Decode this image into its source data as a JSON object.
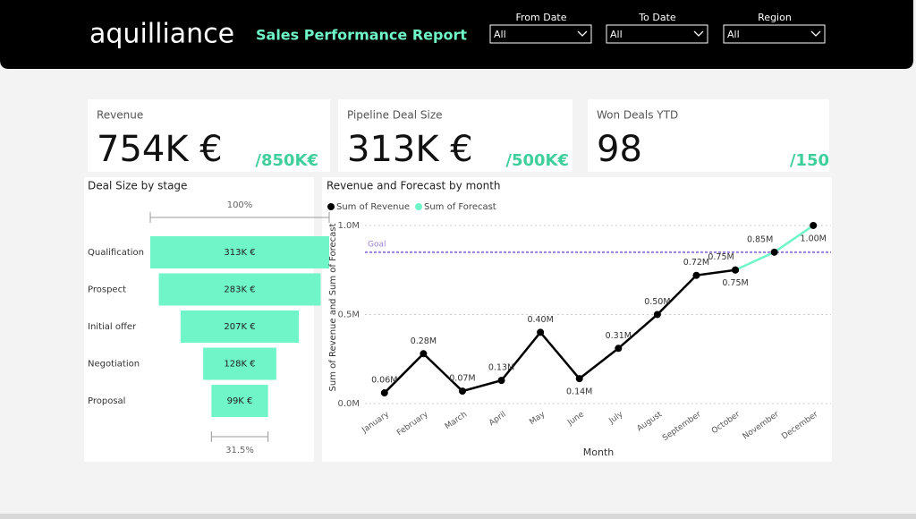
{
  "header": {
    "logo": "aquilliance",
    "title": "Sales Performance Report",
    "filters": [
      {
        "label": "From Date",
        "value": "All"
      },
      {
        "label": "To Date",
        "value": "All"
      },
      {
        "label": "Region",
        "value": "All"
      }
    ]
  },
  "kpis": [
    {
      "label": "Revenue",
      "value": "754K €",
      "target": "/850K€"
    },
    {
      "label": "Pipeline Deal Size",
      "value": "313K €",
      "target": "/500K€"
    },
    {
      "label": "Won Deals YTD",
      "value": "98",
      "target": "/150"
    }
  ],
  "chart_data": [
    {
      "type": "funnel",
      "title": "Deal Size by stage",
      "categories": [
        "Qualification",
        "Prospect",
        "Initial offer",
        "Negotiation",
        "Proposal"
      ],
      "values": [
        313000,
        283000,
        207000,
        128000,
        99000
      ],
      "value_labels": [
        "313K €",
        "283K €",
        "207K €",
        "128K €",
        "99K €"
      ],
      "top_label": "100%",
      "bottom_label": "31.5%",
      "color": "#6ff5c8"
    },
    {
      "type": "line",
      "title": "Revenue and Forecast by month",
      "x_label": "Month",
      "y_label": "Sum of Revenue and Sum of Forecast",
      "categories": [
        "January",
        "February",
        "March",
        "April",
        "May",
        "June",
        "July",
        "August",
        "September",
        "October",
        "November",
        "December"
      ],
      "series": [
        {
          "name": "Sum of Revenue",
          "color": "#000000",
          "values": [
            60000,
            280000,
            70000,
            130000,
            400000,
            140000,
            310000,
            500000,
            720000,
            750000,
            null,
            null
          ],
          "value_labels": [
            "0.06M",
            "0.28M",
            "0.07M",
            "0.13M",
            "0.40M",
            "0.14M",
            "0.31M",
            "0.50M",
            "0.72M",
            "0.75M",
            null,
            null
          ]
        },
        {
          "name": "Sum of Forecast",
          "color": "#6ff5c8",
          "values": [
            null,
            null,
            null,
            null,
            null,
            null,
            null,
            null,
            null,
            750000,
            850000,
            1000000
          ],
          "value_labels": [
            null,
            null,
            null,
            null,
            null,
            null,
            null,
            null,
            null,
            "0.75M",
            "0.85M",
            "1.00M"
          ]
        }
      ],
      "marker_color": "#000000",
      "ylim": [
        0,
        1040000
      ],
      "yticks": [
        {
          "value": 0,
          "label": "0.0M"
        },
        {
          "value": 500000,
          "label": "0.5M"
        },
        {
          "value": 1000000,
          "label": "1.0M"
        }
      ],
      "grid": true,
      "legend": "top-left",
      "goal": {
        "value": 850000,
        "label": "Goal",
        "color": "#9b7fd4"
      }
    }
  ]
}
